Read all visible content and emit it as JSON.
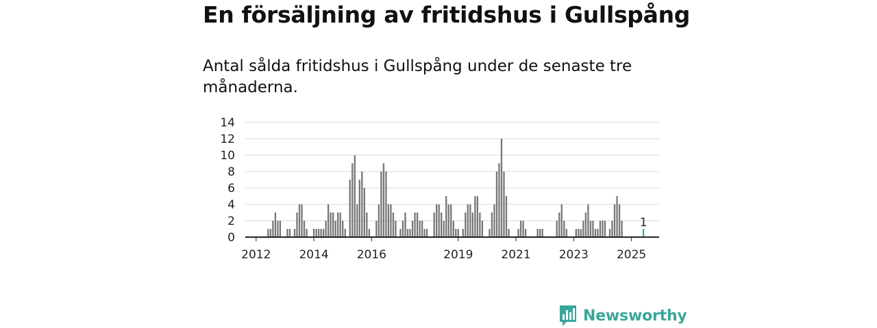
{
  "title": "En försäljning av fritidshus i Gullspång",
  "subtitle": "Antal sålda fritidshus i Gullspång under de senaste tre månaderna.",
  "brand": {
    "name": "Newsworthy",
    "color": "#3aa69a"
  },
  "chart_data": {
    "type": "bar",
    "title": "",
    "xlabel": "",
    "ylabel": "",
    "ylim": [
      0,
      14
    ],
    "yticks": [
      0,
      2,
      4,
      6,
      8,
      10,
      12,
      14
    ],
    "xlim": [
      "2011-09",
      "2025-12"
    ],
    "xticks": [
      {
        "label": "2012",
        "date": "2012-01"
      },
      {
        "label": "2014",
        "date": "2014-01"
      },
      {
        "label": "2016",
        "date": "2016-01"
      },
      {
        "label": "2019",
        "date": "2019-01"
      },
      {
        "label": "2021",
        "date": "2021-01"
      },
      {
        "label": "2023",
        "date": "2023-01"
      },
      {
        "label": "2025",
        "date": "2025-01"
      }
    ],
    "grid": true,
    "bar_color": "#777777",
    "highlight_color": "#3aa69a",
    "highlight": {
      "date": "2025-06",
      "value": 1,
      "label": "1"
    },
    "series": [
      {
        "values": [
          [
            "2012-06",
            1
          ],
          [
            "2012-07",
            1
          ],
          [
            "2012-08",
            2
          ],
          [
            "2012-09",
            3
          ],
          [
            "2012-10",
            2
          ],
          [
            "2012-11",
            2
          ],
          [
            "2013-02",
            1
          ],
          [
            "2013-03",
            1
          ],
          [
            "2013-05",
            1
          ],
          [
            "2013-06",
            3
          ],
          [
            "2013-07",
            4
          ],
          [
            "2013-08",
            4
          ],
          [
            "2013-09",
            2
          ],
          [
            "2013-10",
            1
          ],
          [
            "2014-01",
            1
          ],
          [
            "2014-02",
            1
          ],
          [
            "2014-03",
            1
          ],
          [
            "2014-04",
            1
          ],
          [
            "2014-05",
            1
          ],
          [
            "2014-06",
            2
          ],
          [
            "2014-07",
            4
          ],
          [
            "2014-08",
            3
          ],
          [
            "2014-09",
            3
          ],
          [
            "2014-10",
            2
          ],
          [
            "2014-11",
            3
          ],
          [
            "2014-12",
            3
          ],
          [
            "2015-01",
            2
          ],
          [
            "2015-02",
            1
          ],
          [
            "2015-04",
            7
          ],
          [
            "2015-05",
            9
          ],
          [
            "2015-06",
            10
          ],
          [
            "2015-07",
            4
          ],
          [
            "2015-08",
            7
          ],
          [
            "2015-09",
            8
          ],
          [
            "2015-10",
            6
          ],
          [
            "2015-11",
            3
          ],
          [
            "2015-12",
            1
          ],
          [
            "2016-03",
            2
          ],
          [
            "2016-04",
            4
          ],
          [
            "2016-05",
            8
          ],
          [
            "2016-06",
            9
          ],
          [
            "2016-07",
            8
          ],
          [
            "2016-08",
            4
          ],
          [
            "2016-09",
            4
          ],
          [
            "2016-10",
            3
          ],
          [
            "2016-11",
            2
          ],
          [
            "2017-01",
            1
          ],
          [
            "2017-02",
            2
          ],
          [
            "2017-03",
            3
          ],
          [
            "2017-04",
            1
          ],
          [
            "2017-05",
            1
          ],
          [
            "2017-06",
            2
          ],
          [
            "2017-07",
            3
          ],
          [
            "2017-08",
            3
          ],
          [
            "2017-09",
            2
          ],
          [
            "2017-10",
            2
          ],
          [
            "2017-11",
            1
          ],
          [
            "2017-12",
            1
          ],
          [
            "2018-03",
            3
          ],
          [
            "2018-04",
            4
          ],
          [
            "2018-05",
            4
          ],
          [
            "2018-06",
            3
          ],
          [
            "2018-07",
            2
          ],
          [
            "2018-08",
            5
          ],
          [
            "2018-09",
            4
          ],
          [
            "2018-10",
            4
          ],
          [
            "2018-11",
            2
          ],
          [
            "2018-12",
            1
          ],
          [
            "2019-01",
            1
          ],
          [
            "2019-03",
            1
          ],
          [
            "2019-04",
            3
          ],
          [
            "2019-05",
            4
          ],
          [
            "2019-06",
            4
          ],
          [
            "2019-07",
            3
          ],
          [
            "2019-08",
            5
          ],
          [
            "2019-09",
            5
          ],
          [
            "2019-10",
            3
          ],
          [
            "2019-11",
            2
          ],
          [
            "2020-02",
            1
          ],
          [
            "2020-03",
            3
          ],
          [
            "2020-04",
            4
          ],
          [
            "2020-05",
            8
          ],
          [
            "2020-06",
            9
          ],
          [
            "2020-07",
            12
          ],
          [
            "2020-08",
            8
          ],
          [
            "2020-09",
            5
          ],
          [
            "2020-10",
            1
          ],
          [
            "2021-02",
            1
          ],
          [
            "2021-03",
            2
          ],
          [
            "2021-04",
            2
          ],
          [
            "2021-05",
            1
          ],
          [
            "2021-10",
            1
          ],
          [
            "2021-11",
            1
          ],
          [
            "2021-12",
            1
          ],
          [
            "2022-06",
            2
          ],
          [
            "2022-07",
            3
          ],
          [
            "2022-08",
            4
          ],
          [
            "2022-09",
            2
          ],
          [
            "2022-10",
            1
          ],
          [
            "2023-02",
            1
          ],
          [
            "2023-03",
            1
          ],
          [
            "2023-04",
            1
          ],
          [
            "2023-05",
            2
          ],
          [
            "2023-06",
            3
          ],
          [
            "2023-07",
            4
          ],
          [
            "2023-08",
            2
          ],
          [
            "2023-09",
            2
          ],
          [
            "2023-10",
            1
          ],
          [
            "2023-11",
            1
          ],
          [
            "2023-12",
            2
          ],
          [
            "2024-01",
            2
          ],
          [
            "2024-02",
            2
          ],
          [
            "2024-04",
            1
          ],
          [
            "2024-05",
            2
          ],
          [
            "2024-06",
            4
          ],
          [
            "2024-07",
            5
          ],
          [
            "2024-08",
            4
          ],
          [
            "2024-09",
            2
          ],
          [
            "2025-06",
            1
          ]
        ]
      }
    ]
  }
}
